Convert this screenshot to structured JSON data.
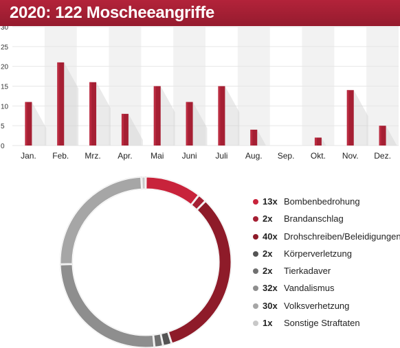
{
  "title": "2020: 122 Moscheeangriffe",
  "colors": {
    "brand": "#a51f33",
    "bar": "#a51f33",
    "grid": "#e6e6e6",
    "shade": "#f2f2f2"
  },
  "chart_data": [
    {
      "type": "bar",
      "title": "2020: 122 Moscheeangriffe",
      "categories": [
        "Jan.",
        "Feb.",
        "Mrz.",
        "Apr.",
        "Mai",
        "Juni",
        "Juli",
        "Aug.",
        "Sep.",
        "Okt.",
        "Nov.",
        "Dez."
      ],
      "values": [
        11,
        21,
        16,
        8,
        15,
        11,
        15,
        4,
        0,
        2,
        14,
        5
      ],
      "ylim": [
        0,
        30
      ],
      "yticks": [
        "0",
        "5",
        "10",
        "15",
        "20",
        "25",
        "30"
      ],
      "grid": true,
      "bar_color": "#a51f33"
    },
    {
      "type": "pie",
      "style": "donut",
      "legend_position": "right",
      "slices": [
        {
          "count_label": "13x",
          "label": "Bombenbedrohung",
          "value": 13,
          "color": "#c8233b"
        },
        {
          "count_label": "2x",
          "label": "Brandanschlag",
          "value": 2,
          "color": "#a51f33"
        },
        {
          "count_label": "40x",
          "label": "Drohschreiben/Beleidigungen",
          "value": 40,
          "color": "#8e1b29"
        },
        {
          "count_label": "2x",
          "label": "Körperverletzung",
          "value": 2,
          "color": "#545454"
        },
        {
          "count_label": "2x",
          "label": "Tierkadaver",
          "value": 2,
          "color": "#707070"
        },
        {
          "count_label": "32x",
          "label": "Vandalismus",
          "value": 32,
          "color": "#8e8e8e"
        },
        {
          "count_label": "30x",
          "label": "Volksverhetzung",
          "value": 30,
          "color": "#a6a6a6"
        },
        {
          "count_label": "1x",
          "label": "Sonstige Straftaten",
          "value": 1,
          "color": "#c8c8c8"
        }
      ]
    }
  ]
}
